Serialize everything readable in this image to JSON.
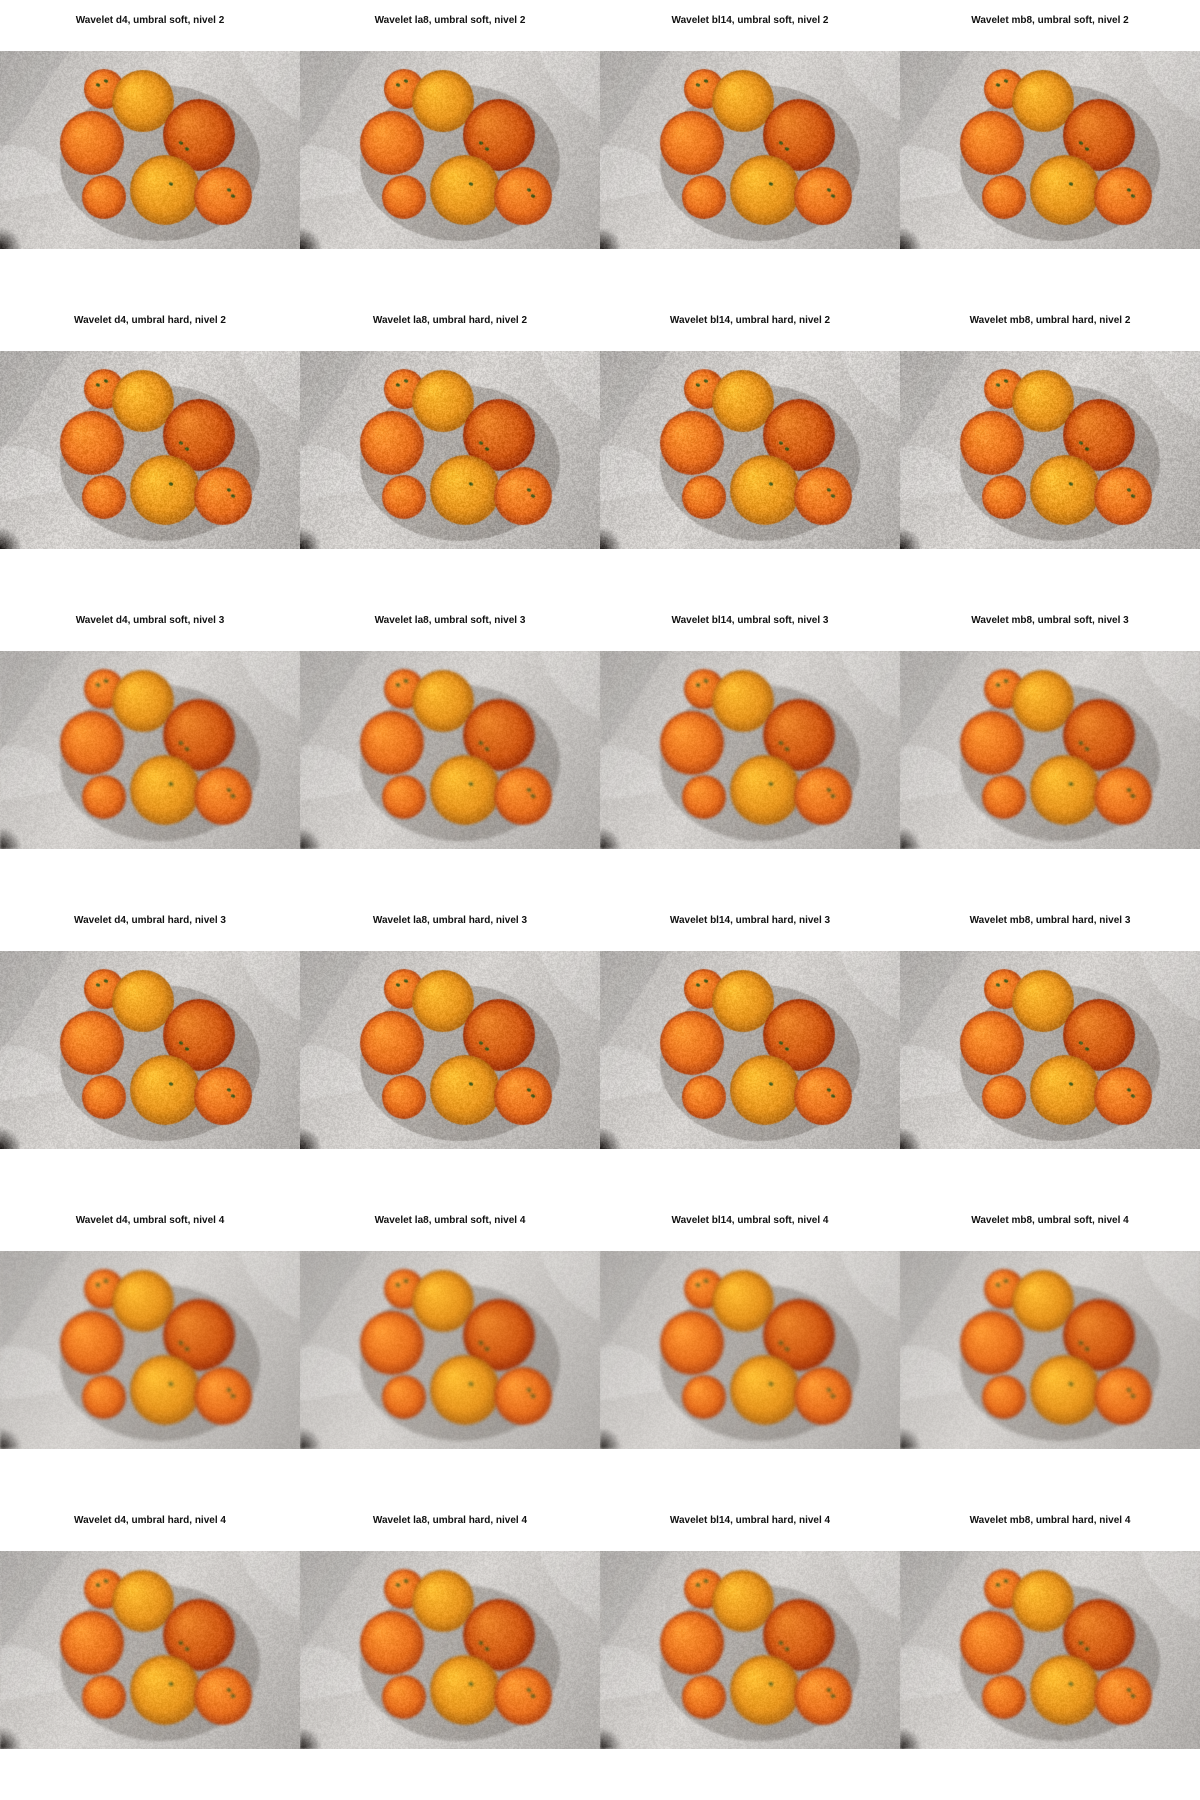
{
  "figure": {
    "panels": [
      {
        "title": "Wavelet d4, umbral soft, nivel 2",
        "blur": 0.2,
        "noise": 0.55
      },
      {
        "title": "Wavelet la8, umbral soft, nivel 2",
        "blur": 0.2,
        "noise": 0.55
      },
      {
        "title": "Wavelet bl14, umbral soft, nivel 2",
        "blur": 0.2,
        "noise": 0.55
      },
      {
        "title": "Wavelet mb8, umbral soft, nivel 2",
        "blur": 0.2,
        "noise": 0.55
      },
      {
        "title": "Wavelet d4, umbral hard, nivel 2",
        "blur": 0.15,
        "noise": 0.7
      },
      {
        "title": "Wavelet la8, umbral hard, nivel 2",
        "blur": 0.15,
        "noise": 0.7
      },
      {
        "title": "Wavelet bl14, umbral hard, nivel 2",
        "blur": 0.15,
        "noise": 0.7
      },
      {
        "title": "Wavelet mb8, umbral hard, nivel 2",
        "blur": 0.15,
        "noise": 0.7
      },
      {
        "title": "Wavelet d4, umbral soft, nivel 3",
        "blur": 0.5,
        "noise": 0.45
      },
      {
        "title": "Wavelet la8, umbral soft, nivel 3",
        "blur": 0.5,
        "noise": 0.45
      },
      {
        "title": "Wavelet bl14, umbral soft, nivel 3",
        "blur": 0.5,
        "noise": 0.45
      },
      {
        "title": "Wavelet mb8, umbral soft, nivel 3",
        "blur": 0.5,
        "noise": 0.45
      },
      {
        "title": "Wavelet d4, umbral hard, nivel 3",
        "blur": 0.4,
        "noise": 0.55
      },
      {
        "title": "Wavelet la8, umbral hard, nivel 3",
        "blur": 0.4,
        "noise": 0.55
      },
      {
        "title": "Wavelet bl14, umbral hard, nivel 3",
        "blur": 0.4,
        "noise": 0.55
      },
      {
        "title": "Wavelet mb8, umbral hard, nivel 3",
        "blur": 0.4,
        "noise": 0.55
      },
      {
        "title": "Wavelet d4, umbral soft, nivel 4",
        "blur": 1.0,
        "noise": 0.3
      },
      {
        "title": "Wavelet la8, umbral soft, nivel 4",
        "blur": 1.0,
        "noise": 0.3
      },
      {
        "title": "Wavelet bl14, umbral soft, nivel 4",
        "blur": 1.0,
        "noise": 0.3
      },
      {
        "title": "Wavelet mb8, umbral soft, nivel 4",
        "blur": 1.0,
        "noise": 0.3
      },
      {
        "title": "Wavelet d4, umbral hard, nivel 4",
        "blur": 0.8,
        "noise": 0.45
      },
      {
        "title": "Wavelet la8, umbral hard, nivel 4",
        "blur": 0.8,
        "noise": 0.45
      },
      {
        "title": "Wavelet bl14, umbral hard, nivel 4",
        "blur": 0.8,
        "noise": 0.45
      },
      {
        "title": "Wavelet mb8, umbral hard, nivel 4",
        "blur": 0.8,
        "noise": 0.45
      }
    ]
  },
  "colors": {
    "background_cloth": "#c9c6c3",
    "orange_dark": "#d25a14",
    "orange_mid": "#e8701e",
    "orange_light": "#f08a2a",
    "tangerine_yellow": "#e8951e",
    "stem_spot": "#3d5a1c"
  }
}
